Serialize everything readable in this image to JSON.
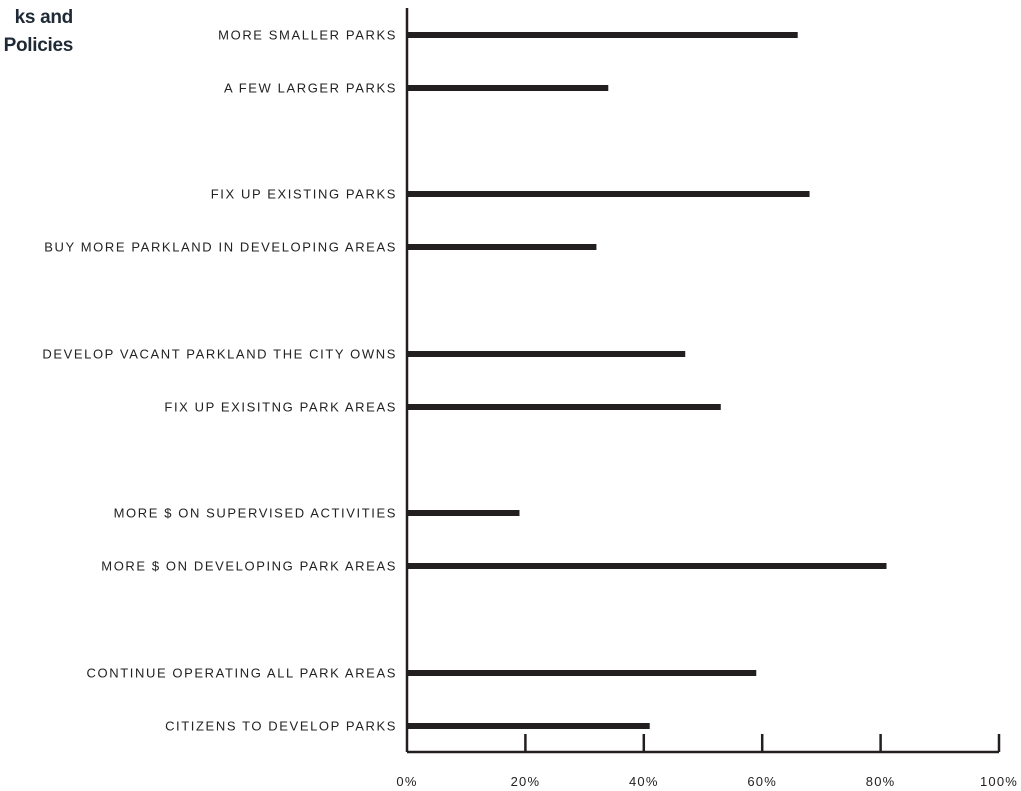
{
  "title_lines": [
    "ks and",
    "Policies"
  ],
  "chart_data": {
    "type": "bar",
    "orientation": "horizontal",
    "categories": [
      "MORE SMALLER PARKS",
      "A FEW LARGER PARKS",
      "FIX UP EXISTING PARKS",
      "BUY MORE PARKLAND IN DEVELOPING AREAS",
      "DEVELOP VACANT PARKLAND THE CITY OWNS",
      "FIX UP EXISITNG PARK AREAS",
      "MORE $ ON SUPERVISED ACTIVITIES",
      "MORE $ ON DEVELOPING PARK AREAS",
      "CONTINUE OPERATING ALL PARK AREAS",
      "CITIZENS TO DEVELOP PARKS"
    ],
    "values": [
      66,
      34,
      68,
      32,
      47,
      53,
      19,
      81,
      59,
      41
    ],
    "groups": [
      [
        0,
        1
      ],
      [
        2,
        3
      ],
      [
        4,
        5
      ],
      [
        6,
        7
      ],
      [
        8,
        9
      ]
    ],
    "xlim": [
      0,
      100
    ],
    "x_ticks": [
      0,
      20,
      40,
      60,
      80,
      100
    ],
    "x_tick_labels": [
      "0%",
      "20%",
      "40%",
      "60%",
      "80%",
      "100%"
    ],
    "bar_color": "#231f20",
    "grid": false
  }
}
